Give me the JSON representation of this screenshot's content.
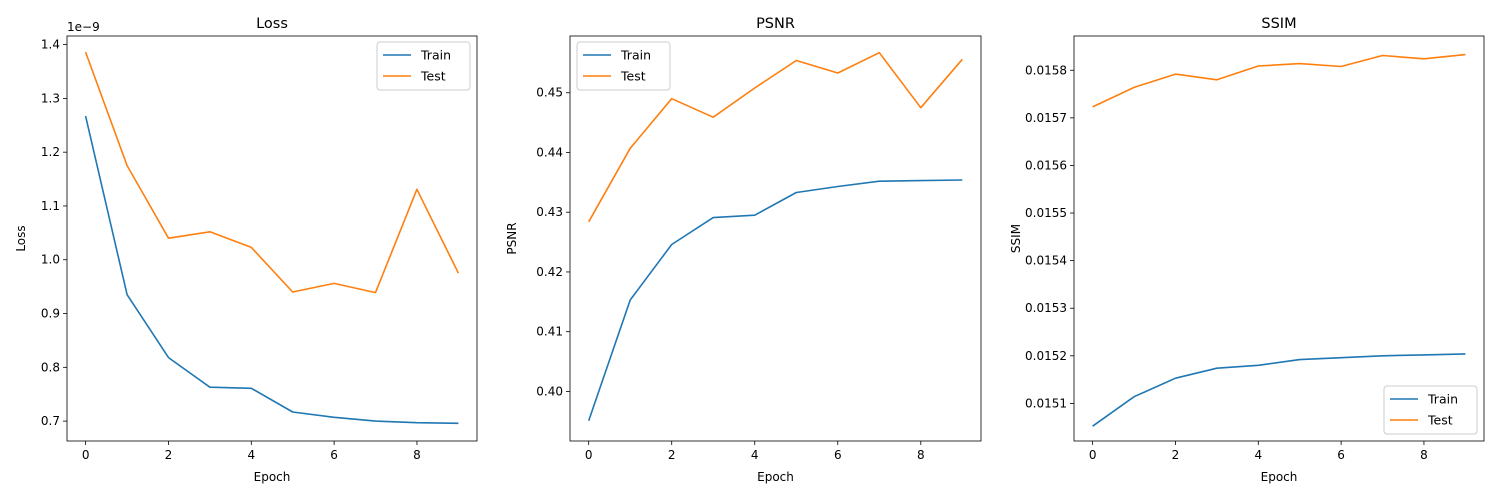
{
  "chart_data": [
    {
      "type": "line",
      "title": "Loss",
      "xlabel": "Epoch",
      "ylabel": "Loss",
      "y_offset_label": "1e−9",
      "x": [
        0,
        1,
        2,
        3,
        4,
        5,
        6,
        7,
        8,
        9
      ],
      "xlim": [
        -0.45,
        9.45
      ],
      "xticks": [
        0,
        2,
        4,
        6,
        8
      ],
      "xtick_labels": [
        "0",
        "2",
        "4",
        "6",
        "8"
      ],
      "ylim": [
        0.663,
        1.416
      ],
      "yticks": [
        0.7,
        0.8,
        0.9,
        1.0,
        1.1,
        1.2,
        1.3,
        1.4
      ],
      "ytick_labels": [
        "0.7",
        "0.8",
        "0.9",
        "1.0",
        "1.1",
        "1.2",
        "1.3",
        "1.4"
      ],
      "legend": "upper right",
      "series": [
        {
          "name": "Train",
          "color": "#1f77b4",
          "values": [
            1.267,
            0.935,
            0.818,
            0.763,
            0.761,
            0.717,
            0.707,
            0.7,
            0.697,
            0.696
          ]
        },
        {
          "name": "Test",
          "color": "#ff7f0e",
          "values": [
            1.386,
            1.175,
            1.04,
            1.052,
            1.023,
            0.94,
            0.956,
            0.939,
            1.131,
            0.975
          ]
        }
      ]
    },
    {
      "type": "line",
      "title": "PSNR",
      "xlabel": "Epoch",
      "ylabel": "PSNR",
      "x": [
        0,
        1,
        2,
        3,
        4,
        5,
        6,
        7,
        8,
        9
      ],
      "xlim": [
        -0.45,
        9.45
      ],
      "xticks": [
        0,
        2,
        4,
        6,
        8
      ],
      "xtick_labels": [
        "0",
        "2",
        "4",
        "6",
        "8"
      ],
      "ylim": [
        0.3917,
        0.4595
      ],
      "yticks": [
        0.4,
        0.41,
        0.42,
        0.43,
        0.44,
        0.45
      ],
      "ytick_labels": [
        "0.40",
        "0.41",
        "0.42",
        "0.43",
        "0.44",
        "0.45"
      ],
      "legend": "upper left",
      "series": [
        {
          "name": "Train",
          "color": "#1f77b4",
          "values": [
            0.3951,
            0.4153,
            0.4246,
            0.4291,
            0.4295,
            0.4333,
            0.4343,
            0.4352,
            0.4353,
            0.4354
          ]
        },
        {
          "name": "Test",
          "color": "#ff7f0e",
          "values": [
            0.4284,
            0.4407,
            0.449,
            0.4459,
            0.4508,
            0.4554,
            0.4533,
            0.4567,
            0.4475,
            0.4556
          ]
        }
      ]
    },
    {
      "type": "line",
      "title": "SSIM",
      "xlabel": "Epoch",
      "ylabel": "SSIM",
      "x": [
        0,
        1,
        2,
        3,
        4,
        5,
        6,
        7,
        8,
        9
      ],
      "xlim": [
        -0.45,
        9.45
      ],
      "xticks": [
        0,
        2,
        4,
        6,
        8
      ],
      "xtick_labels": [
        "0",
        "2",
        "4",
        "6",
        "8"
      ],
      "ylim": [
        0.015021,
        0.015872
      ],
      "yticks": [
        0.0151,
        0.0152,
        0.0153,
        0.0154,
        0.0155,
        0.0156,
        0.0157,
        0.0158
      ],
      "ytick_labels": [
        "0.0151",
        "0.0152",
        "0.0153",
        "0.0154",
        "0.0155",
        "0.0156",
        "0.0157",
        "0.0158"
      ],
      "legend": "lower right",
      "series": [
        {
          "name": "Train",
          "color": "#1f77b4",
          "values": [
            0.015052,
            0.015114,
            0.015153,
            0.015174,
            0.01518,
            0.015192,
            0.015196,
            0.0152,
            0.015202,
            0.015204
          ]
        },
        {
          "name": "Test",
          "color": "#ff7f0e",
          "values": [
            0.015723,
            0.015764,
            0.015792,
            0.01578,
            0.015809,
            0.015814,
            0.015808,
            0.015831,
            0.015824,
            0.015833
          ]
        }
      ]
    }
  ]
}
